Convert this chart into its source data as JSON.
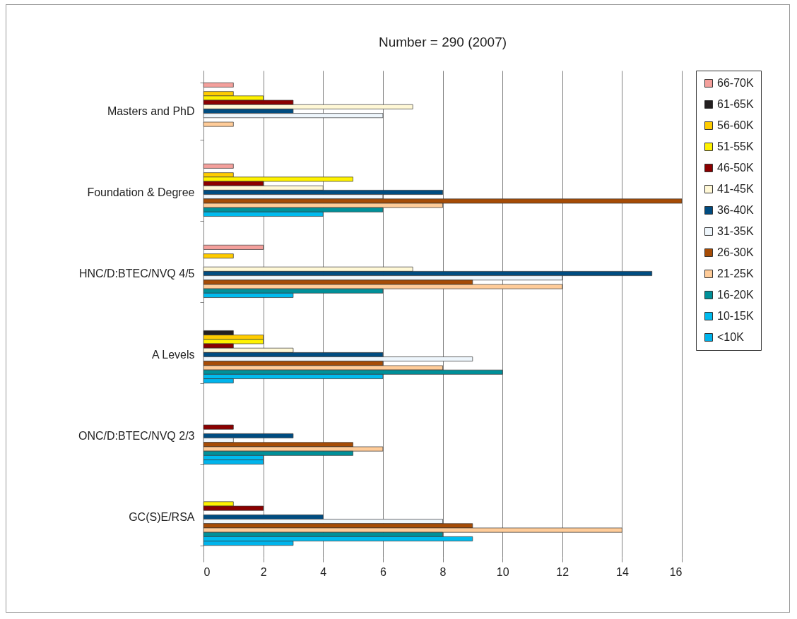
{
  "chart_data": {
    "type": "bar",
    "orientation": "horizontal",
    "title": "Number = 290 (2007)",
    "categories": [
      "Masters and PhD",
      "Foundation & Degree",
      "HNC/D:BTEC/NVQ 4/5",
      "A Levels",
      "ONC/D:BTEC/NVQ 2/3",
      "GC(S)E/RSA"
    ],
    "series": [
      {
        "name": "66-70K",
        "color": "#f4a09c",
        "values": [
          1,
          1,
          2,
          null,
          null,
          null
        ]
      },
      {
        "name": "61-65K",
        "color": "#231f20",
        "values": [
          null,
          null,
          null,
          1,
          null,
          null
        ]
      },
      {
        "name": "56-60K",
        "color": "#ffcc00",
        "values": [
          1,
          1,
          1,
          2,
          null,
          null
        ]
      },
      {
        "name": "51-55K",
        "color": "#fff200",
        "values": [
          2,
          5,
          null,
          2,
          null,
          1
        ]
      },
      {
        "name": "46-50K",
        "color": "#8b0000",
        "values": [
          3,
          2,
          null,
          1,
          1,
          2
        ]
      },
      {
        "name": "41-45K",
        "color": "#fff8d6",
        "values": [
          7,
          4,
          7,
          3,
          null,
          null
        ]
      },
      {
        "name": "36-40K",
        "color": "#004c80",
        "values": [
          3,
          8,
          15,
          6,
          3,
          4
        ]
      },
      {
        "name": "31-35K",
        "color": "#eef6fc",
        "values": [
          6,
          6,
          12,
          9,
          1,
          8
        ]
      },
      {
        "name": "26-30K",
        "color": "#a64c06",
        "values": [
          null,
          16,
          9,
          6,
          5,
          9
        ]
      },
      {
        "name": "21-25K",
        "color": "#ffcc99",
        "values": [
          1,
          8,
          12,
          8,
          6,
          14
        ]
      },
      {
        "name": "16-20K",
        "color": "#009099",
        "values": [
          null,
          6,
          6,
          10,
          5,
          8
        ]
      },
      {
        "name": "10-15K",
        "color": "#00bbee",
        "values": [
          null,
          4,
          3,
          6,
          2,
          9
        ]
      },
      {
        "name": "<10K",
        "color": "#00b4ec",
        "values": [
          null,
          null,
          null,
          1,
          2,
          3
        ]
      }
    ],
    "xlim": [
      0,
      16
    ],
    "xticks": [
      0,
      2,
      4,
      6,
      8,
      10,
      12,
      14,
      16
    ],
    "grid": "x",
    "legend": "right"
  }
}
